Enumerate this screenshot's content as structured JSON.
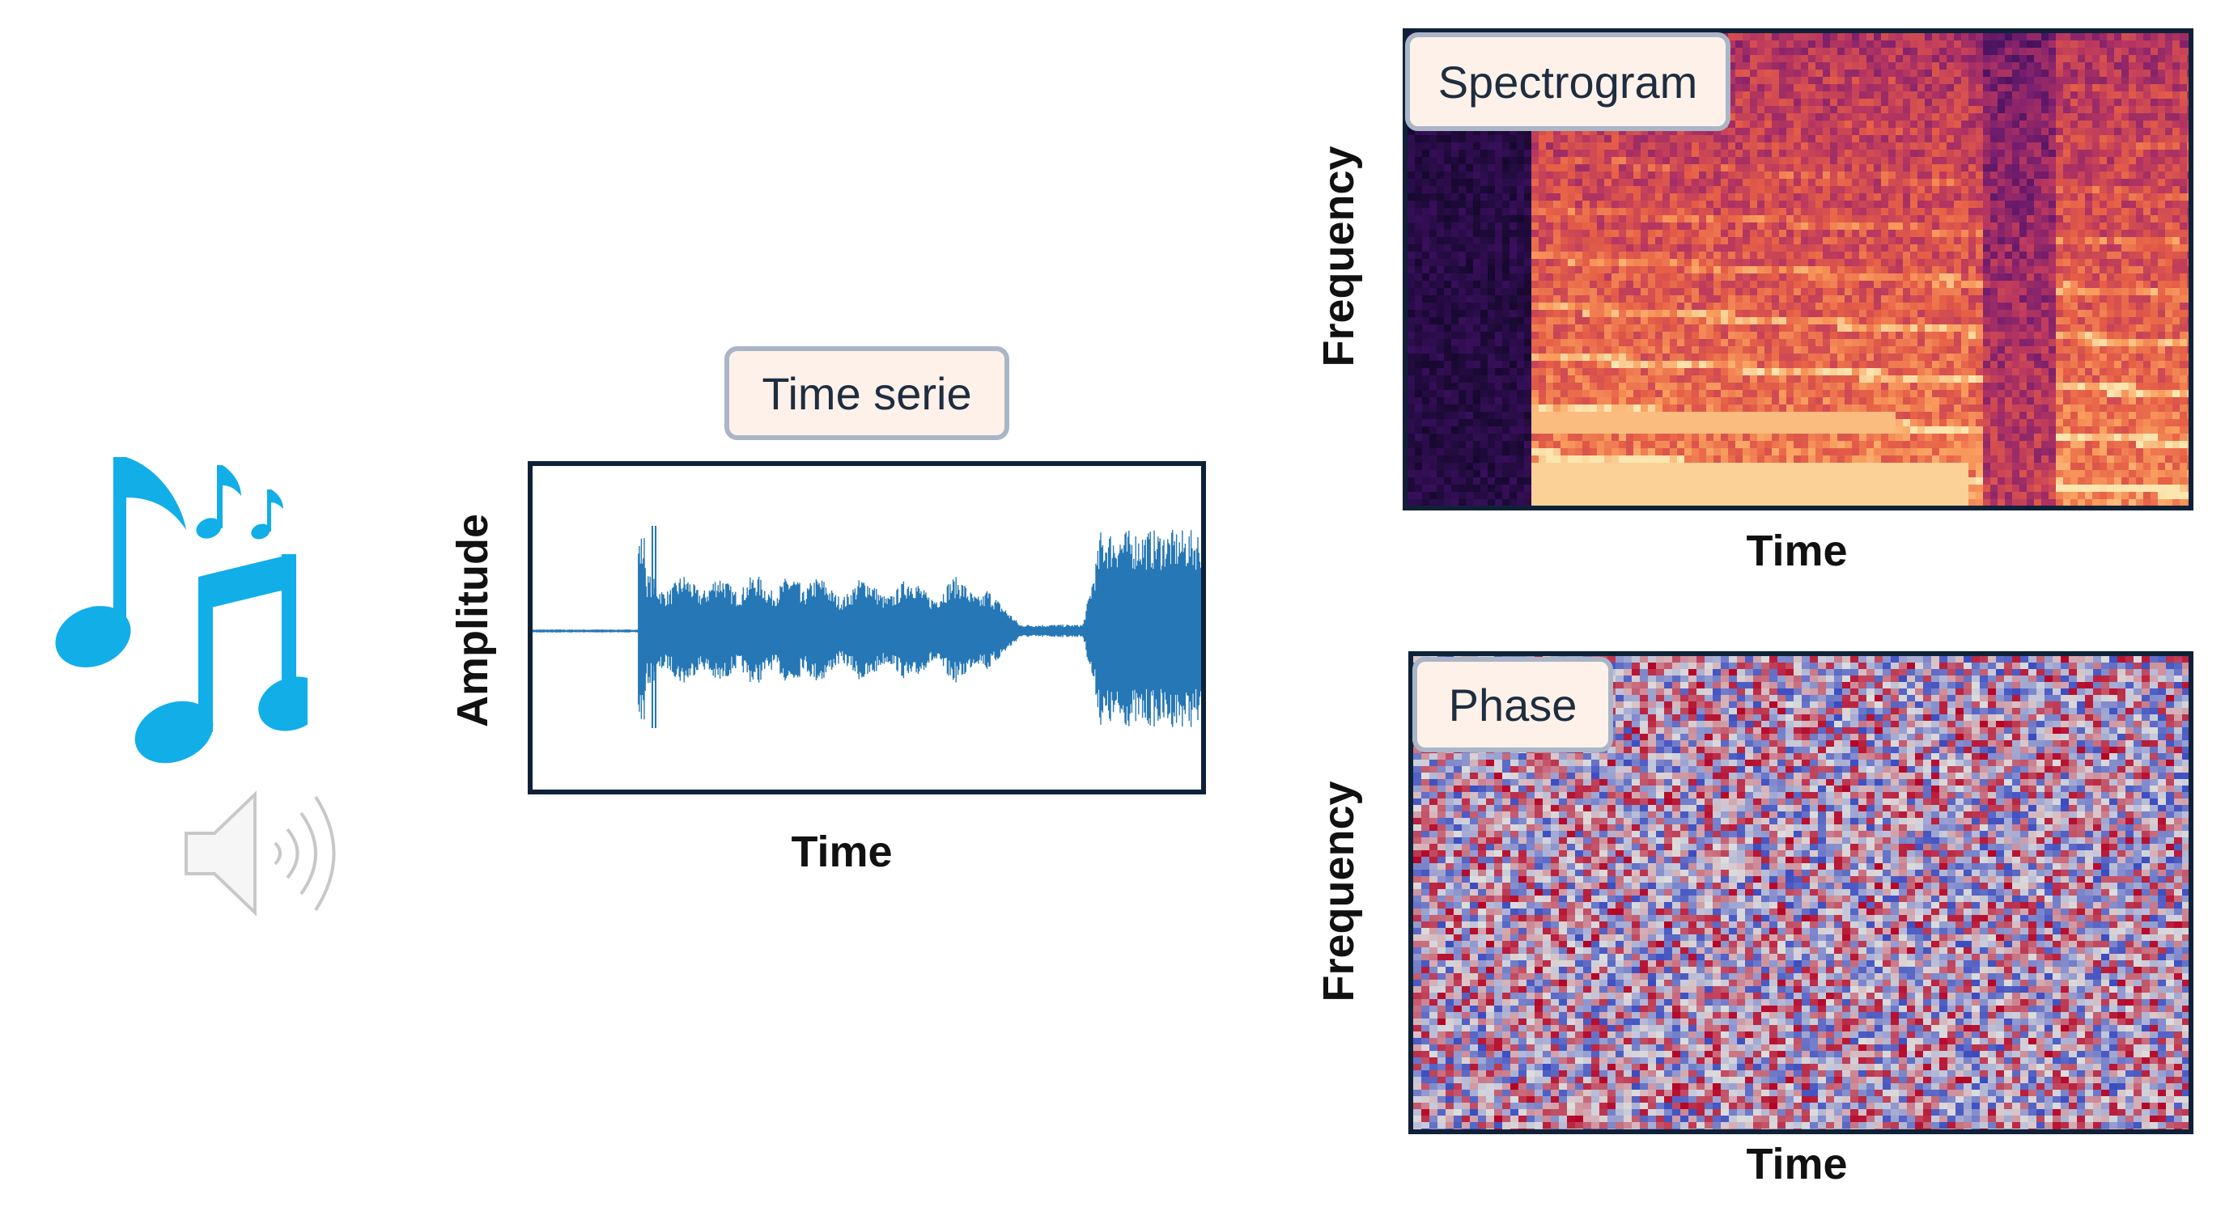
{
  "colors": {
    "music_note": "#12aee8",
    "speaker": "#c8c8c8",
    "waveform": "#2577b5",
    "frame": "#0f2138",
    "label_bg": "#fdf1ea",
    "label_border": "#aab6c6"
  },
  "icons": [
    "music-notes-icon",
    "speaker-icon"
  ],
  "time_series": {
    "label": "Time serie",
    "x_axis": "Time",
    "y_axis": "Amplitude"
  },
  "spectrogram": {
    "label": "Spectrogram",
    "x_axis": "Time",
    "y_axis": "Frequency"
  },
  "phase": {
    "label": "Phase",
    "x_axis": "Time",
    "y_axis": "Frequency"
  }
}
